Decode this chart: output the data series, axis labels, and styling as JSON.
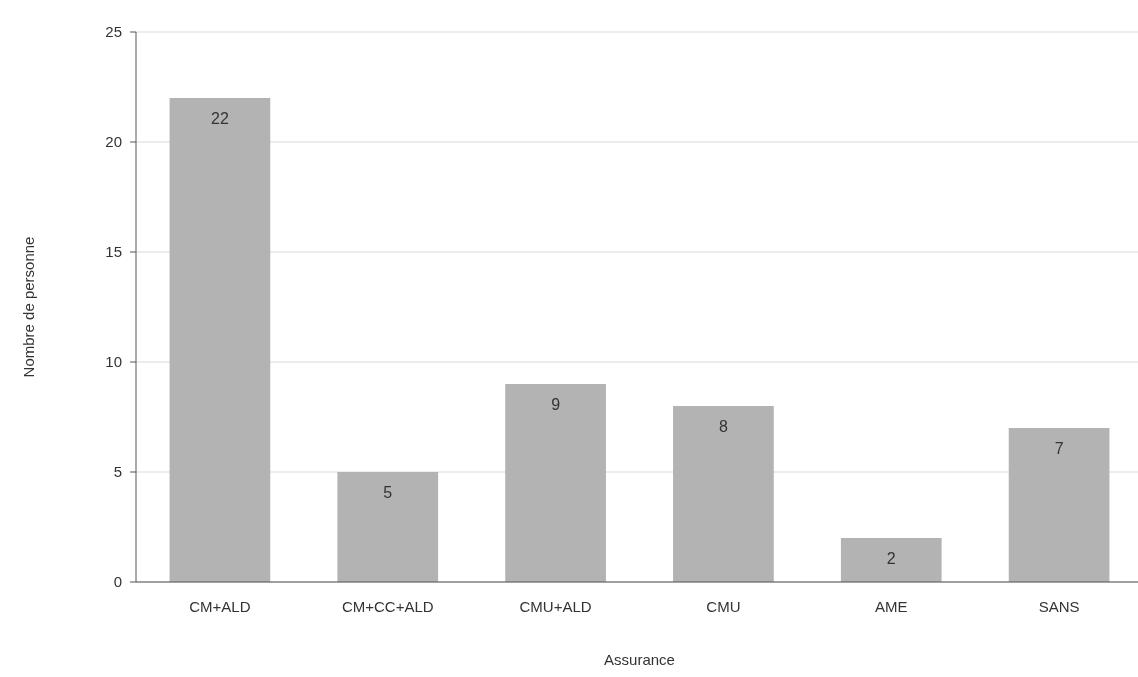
{
  "chart_data": {
    "type": "bar",
    "xlabel": "Assurance",
    "ylabel": "Nombre de personne",
    "categories": [
      "CM+ALD",
      "CM+CC+ALD",
      "CMU+ALD",
      "CMU",
      "AME",
      "SANS"
    ],
    "values": [
      22,
      5,
      9,
      8,
      2,
      7
    ],
    "color": "#b3b3b3",
    "ylim": [
      0,
      25
    ],
    "yticks": [
      0,
      5,
      10,
      15,
      20,
      25
    ],
    "grid": "y",
    "data_labels": true
  }
}
